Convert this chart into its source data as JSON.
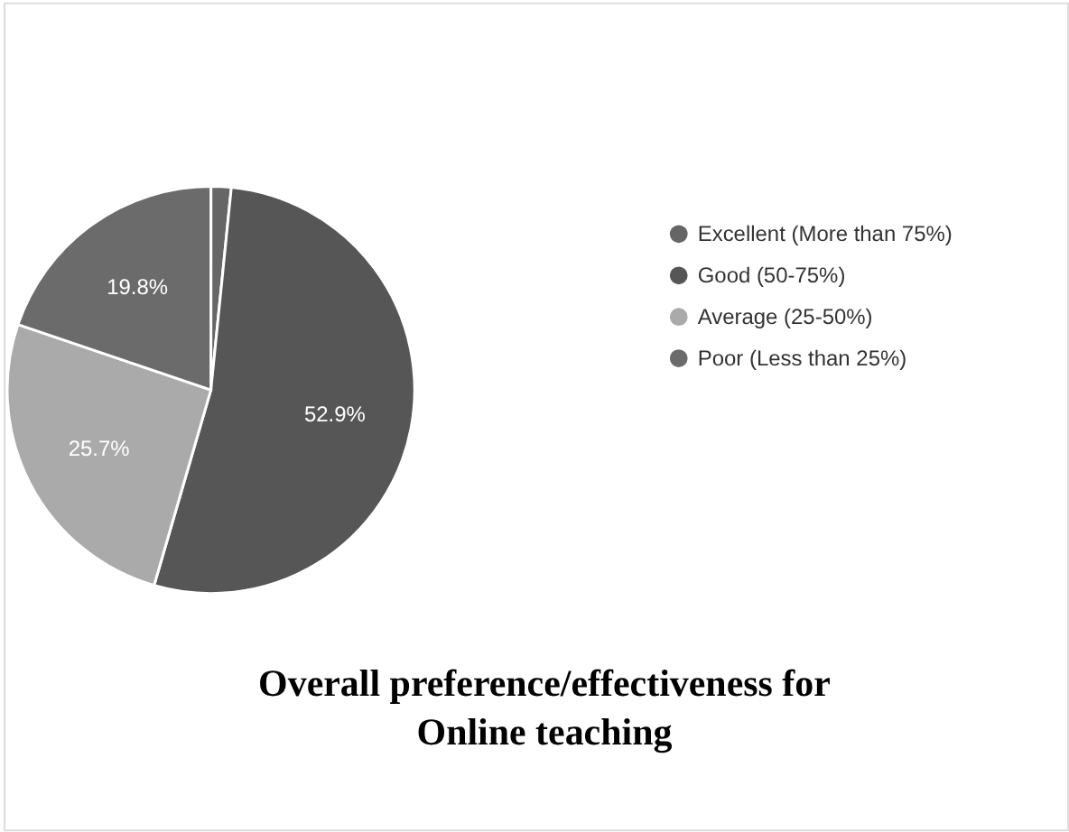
{
  "chart_data": {
    "type": "pie",
    "title": "Overall preference/effectiveness for Online teaching",
    "categories": [
      "Excellent (More than 75%)",
      "Good (50-75%)",
      "Average (25-50%)",
      "Poor (Less than 25%)"
    ],
    "values": [
      1.6,
      52.9,
      25.7,
      19.8
    ],
    "colors": [
      "#666666",
      "#565656",
      "#aaaaaa",
      "#6b6b6b"
    ],
    "value_labels": [
      null,
      "52.9%",
      "25.7%",
      "19.8%"
    ],
    "legend": "right"
  }
}
